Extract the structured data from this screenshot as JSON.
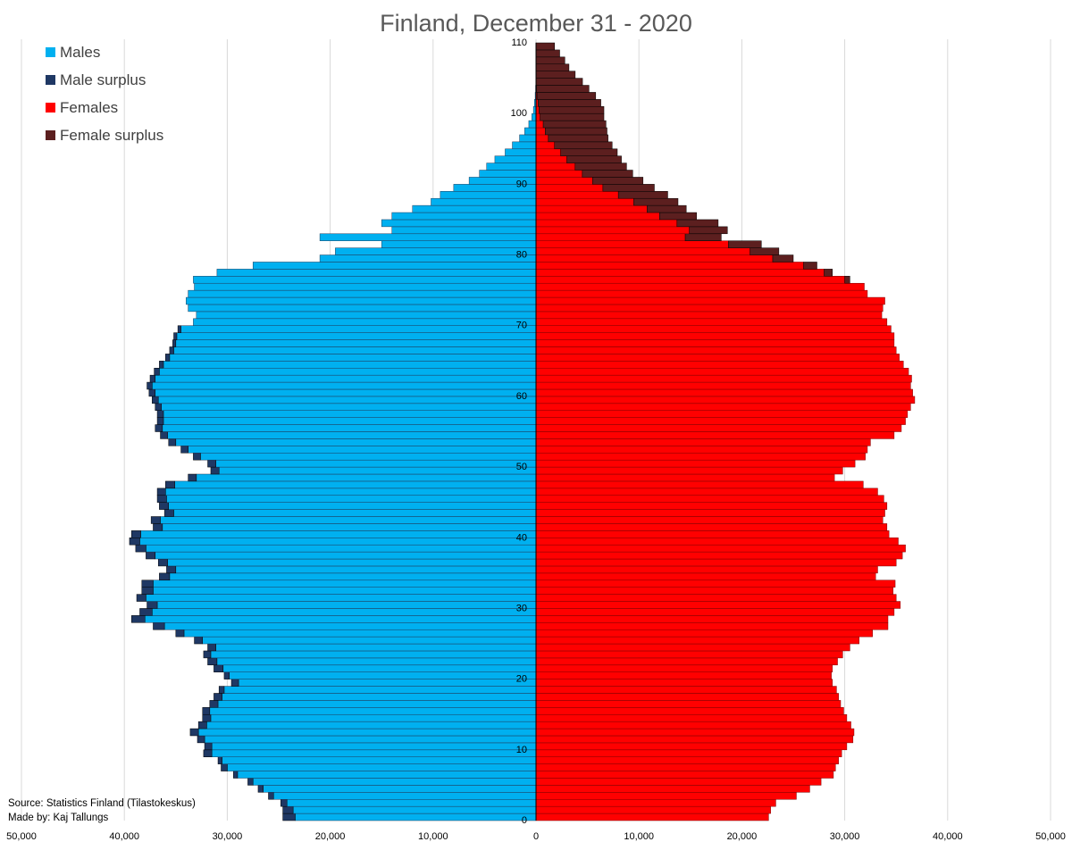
{
  "chart_data": {
    "type": "bar",
    "orientation": "horizontal",
    "title": "Finland, December 31 - 2020",
    "x_tick_labels": [
      "50,000",
      "40,000",
      "30,000",
      "20,000",
      "10,000",
      "0",
      "10,000",
      "20,000",
      "30,000",
      "40,000",
      "50,000"
    ],
    "xlim": [
      -50000,
      50000
    ],
    "y_tick_labels": [
      "0",
      "10",
      "20",
      "30",
      "40",
      "50",
      "60",
      "70",
      "80",
      "90",
      "100",
      "110"
    ],
    "ylim": [
      0,
      110
    ],
    "legend": [
      {
        "label": "Males",
        "color": "#00B0F0"
      },
      {
        "label": "Male surplus",
        "color": "#1F3864"
      },
      {
        "label": "Females",
        "color": "#FF0000"
      },
      {
        "label": "Female surplus",
        "color": "#5C1F1F"
      }
    ],
    "legend_position": "top-left",
    "grid": "vertical",
    "ages": [
      0,
      1,
      2,
      3,
      4,
      5,
      6,
      7,
      8,
      9,
      10,
      11,
      12,
      13,
      14,
      15,
      16,
      17,
      18,
      19,
      20,
      21,
      22,
      23,
      24,
      25,
      26,
      27,
      28,
      29,
      30,
      31,
      32,
      33,
      34,
      35,
      36,
      37,
      38,
      39,
      40,
      41,
      42,
      43,
      44,
      45,
      46,
      47,
      48,
      49,
      50,
      51,
      52,
      53,
      54,
      55,
      56,
      57,
      58,
      59,
      60,
      61,
      62,
      63,
      64,
      65,
      66,
      67,
      68,
      69,
      70,
      71,
      72,
      73,
      74,
      75,
      76,
      77,
      78,
      79,
      80,
      81,
      82,
      83,
      84,
      85,
      86,
      87,
      88,
      89,
      90,
      91,
      92,
      93,
      94,
      95,
      96,
      97,
      98,
      99,
      100,
      101,
      102,
      103,
      104,
      105,
      106,
      107,
      108,
      109,
      110
    ],
    "series": [
      {
        "name": "Males",
        "values": [
          23400,
          23600,
          24200,
          25500,
          26500,
          27500,
          29000,
          30000,
          30500,
          31500,
          31500,
          32200,
          32800,
          32000,
          31600,
          31700,
          30900,
          30500,
          30300,
          28900,
          29800,
          30400,
          31000,
          31600,
          31100,
          32400,
          34200,
          36100,
          38000,
          37300,
          36800,
          37900,
          37200,
          37200,
          35600,
          35000,
          35800,
          37000,
          37900,
          38500,
          38400,
          36300,
          36500,
          35200,
          35700,
          35900,
          36000,
          35100,
          33000,
          30800,
          31100,
          32600,
          33800,
          35000,
          35800,
          36300,
          36200,
          36200,
          36400,
          36700,
          37000,
          37300,
          37000,
          36600,
          36200,
          35600,
          35200,
          35000,
          34900,
          34500,
          33300,
          33000,
          33800,
          34000,
          33800,
          33200,
          33300,
          31000,
          27500,
          21000,
          19500,
          15000,
          21000,
          14000,
          15000,
          14000,
          12000,
          10200,
          9300,
          8000,
          6500,
          5500,
          4800,
          4000,
          3000,
          2300,
          1600,
          1100,
          700,
          400,
          250,
          150,
          80,
          40,
          20,
          10,
          5,
          3,
          2,
          1,
          0
        ]
      },
      {
        "name": "Male surplus",
        "values": [
          1200,
          1000,
          600,
          500,
          500,
          500,
          400,
          600,
          400,
          800,
          700,
          700,
          800,
          800,
          800,
          700,
          800,
          800,
          500,
          700,
          500,
          900,
          900,
          700,
          800,
          800,
          800,
          1100,
          1300,
          1200,
          1000,
          900,
          1100,
          1100,
          1000,
          900,
          900,
          900,
          1000,
          1000,
          900,
          900,
          900,
          900,
          900,
          900,
          800,
          900,
          800,
          800,
          800,
          700,
          700,
          700,
          700,
          700,
          600,
          600,
          600,
          600,
          600,
          500,
          500,
          500,
          400,
          400,
          400,
          300,
          300,
          300,
          0,
          0,
          0,
          0,
          0,
          0,
          0,
          0,
          0,
          0,
          0,
          0,
          0,
          0,
          0,
          0,
          0,
          0,
          0,
          0,
          0,
          0,
          0,
          0,
          0,
          0,
          0,
          0,
          0,
          0,
          0,
          0,
          0,
          0,
          0,
          0,
          0,
          0,
          0,
          0,
          0
        ]
      },
      {
        "name": "Females",
        "values": [
          22600,
          22800,
          23300,
          25300,
          26600,
          27700,
          28900,
          29100,
          29400,
          29700,
          30200,
          30800,
          30900,
          30600,
          30200,
          29900,
          29600,
          29400,
          29200,
          28800,
          28700,
          28800,
          29300,
          29800,
          30500,
          31400,
          32700,
          34200,
          34200,
          34800,
          35400,
          35000,
          34700,
          34900,
          33000,
          33200,
          35000,
          35600,
          35900,
          35200,
          34300,
          34100,
          33700,
          33900,
          34100,
          33800,
          33200,
          31800,
          29000,
          29800,
          31000,
          32000,
          32200,
          32500,
          34800,
          35500,
          35900,
          36100,
          36400,
          36800,
          36600,
          36400,
          36500,
          36200,
          35700,
          35300,
          35000,
          34800,
          34800,
          34500,
          34100,
          33600,
          33700,
          33900,
          32200,
          31900,
          30000,
          28000,
          26000,
          23000,
          20800,
          18700,
          14500,
          14900,
          13700,
          12000,
          10800,
          9500,
          8000,
          6500,
          5500,
          4500,
          3800,
          3000,
          2400,
          1800,
          1200,
          900,
          700,
          400,
          300,
          200,
          100,
          50,
          20,
          10,
          5,
          3,
          2,
          1,
          0
        ]
      },
      {
        "name": "Female surplus",
        "values": [
          0,
          0,
          0,
          0,
          0,
          0,
          0,
          0,
          0,
          0,
          0,
          0,
          0,
          0,
          0,
          0,
          0,
          0,
          0,
          0,
          0,
          0,
          0,
          0,
          0,
          0,
          0,
          0,
          0,
          0,
          0,
          0,
          0,
          0,
          0,
          0,
          0,
          0,
          0,
          0,
          0,
          0,
          0,
          0,
          0,
          0,
          0,
          0,
          0,
          0,
          0,
          0,
          0,
          0,
          0,
          0,
          0,
          0,
          0,
          0,
          0,
          0,
          0,
          0,
          0,
          0,
          0,
          0,
          0,
          0,
          0,
          0,
          0,
          0,
          0,
          0,
          500,
          800,
          1300,
          2000,
          2800,
          3200,
          3500,
          3700,
          4000,
          3600,
          3800,
          4300,
          4800,
          5000,
          4900,
          4900,
          5000,
          5300,
          5500,
          5600,
          5800,
          6000,
          6100,
          6200,
          6300,
          6100,
          5700,
          5100,
          4500,
          3800,
          3200,
          2800,
          2300,
          1800,
          0
        ]
      }
    ],
    "notes": [
      "Source: Statistics Finland (Tilastokeskus)",
      "Made by: Kaj Tallungs"
    ]
  }
}
